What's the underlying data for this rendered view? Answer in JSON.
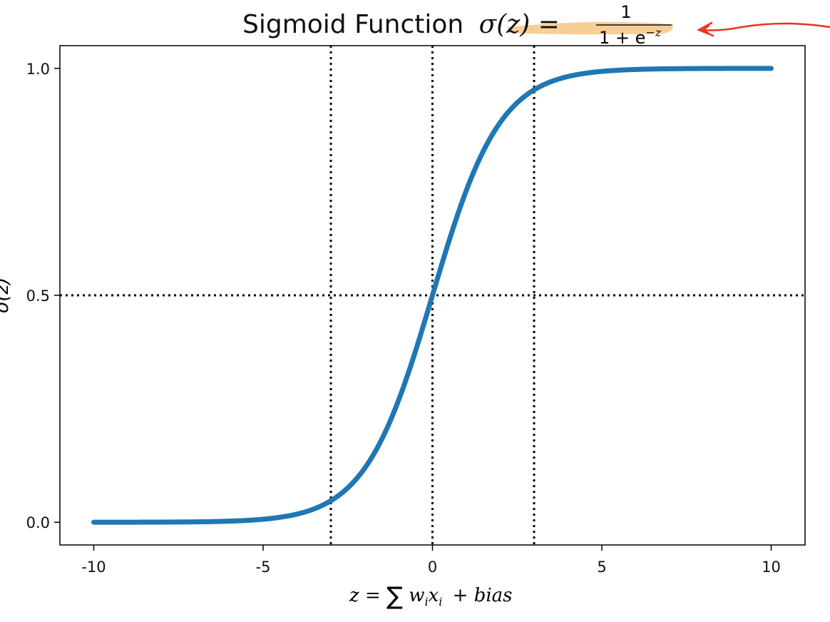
{
  "chart_data": {
    "type": "line",
    "title_prefix": "Sigmoid Function",
    "title_lhs": "σ(z) =",
    "title_numerator": "1",
    "title_denominator": "1 + e",
    "title_exponent": "−z",
    "xlabel_lhs": "z =",
    "xlabel_sum": "∑",
    "xlabel_w": "w",
    "xlabel_i1": "i",
    "xlabel_x": "x",
    "xlabel_i2": "i",
    "xlabel_rest": "+ bias",
    "ylabel": "σ(z)",
    "xlim": [
      -11,
      11
    ],
    "ylim": [
      -0.05,
      1.05
    ],
    "xticks": [
      -10,
      -5,
      0,
      5,
      10
    ],
    "xtick_labels": [
      "-10",
      "-5",
      "0",
      "5",
      "10"
    ],
    "yticks": [
      0,
      0.5,
      1
    ],
    "ytick_labels": [
      "0.0",
      "0.5",
      "1.0"
    ],
    "series": [
      {
        "function": "sigmoid",
        "x_range": [
          -10,
          10
        ],
        "color": "#1f77b4"
      }
    ],
    "reference_lines": {
      "vertical_x": [
        -3,
        0,
        3
      ],
      "horizontal_y": [
        0.5
      ],
      "style": "dotted",
      "color": "#000000"
    },
    "grid": false,
    "highlight_color": "#f5c27a",
    "annotation_color": "#e8321e"
  }
}
